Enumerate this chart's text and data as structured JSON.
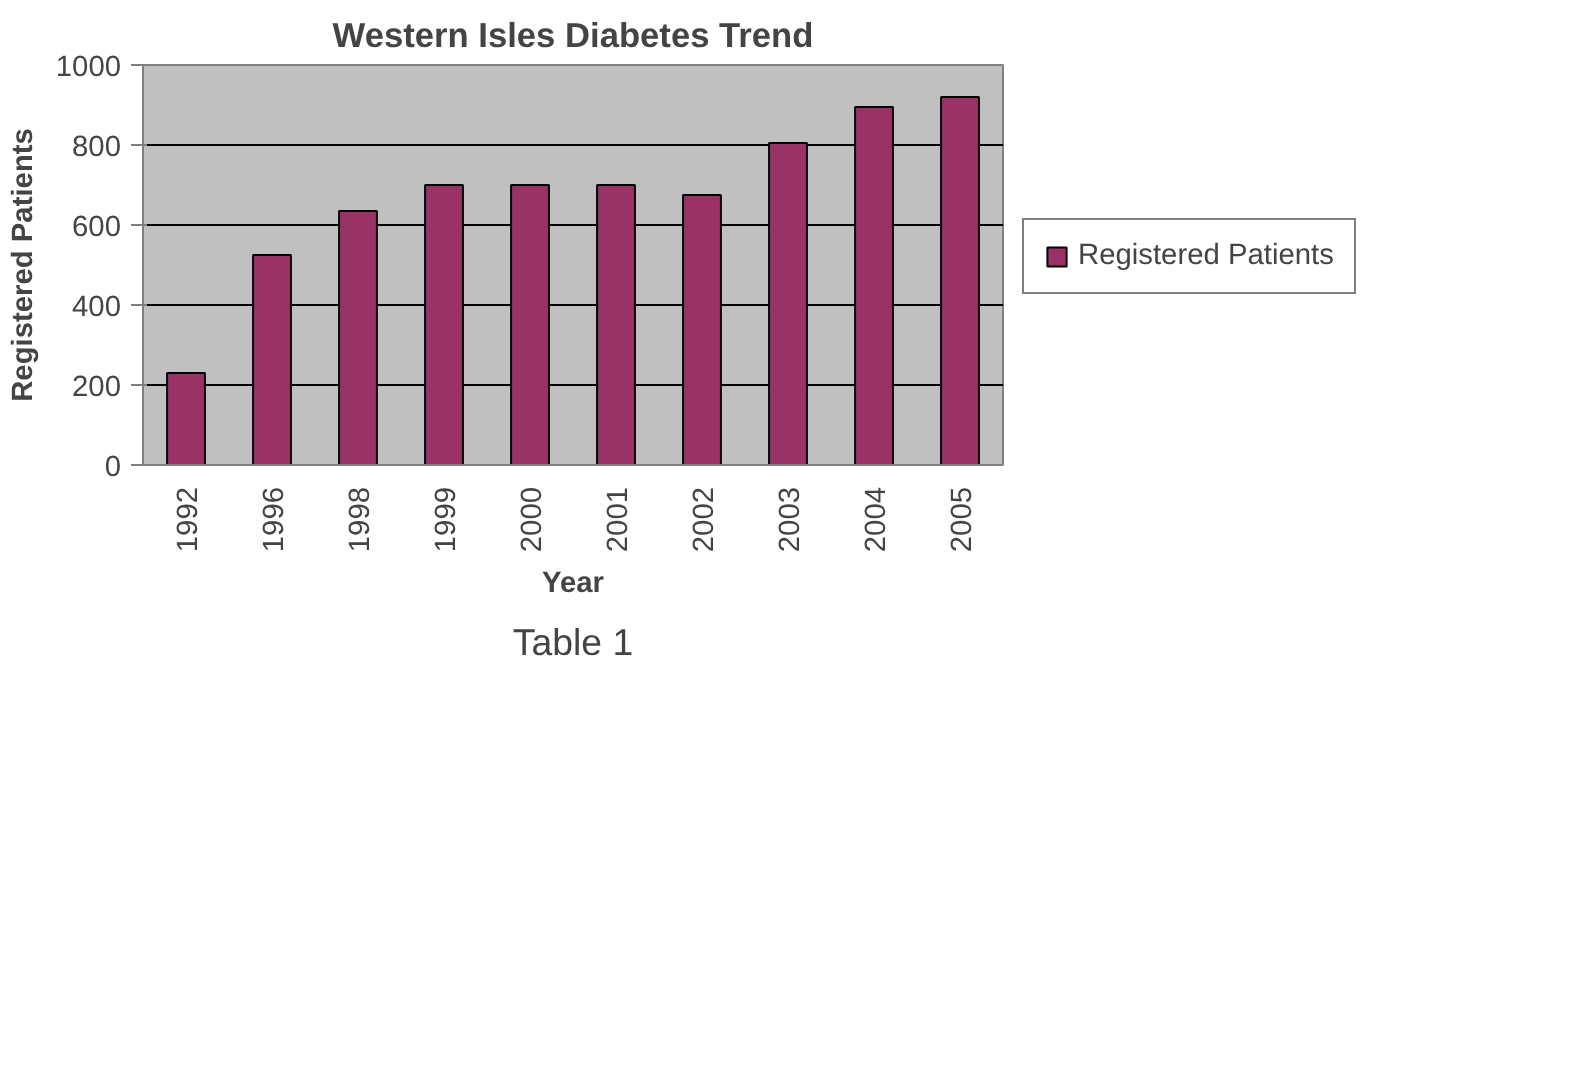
{
  "chart_data": {
    "type": "bar",
    "title": "Western Isles Diabetes Trend",
    "xlabel": "Year",
    "ylabel": "Registered Patients",
    "categories": [
      "1992",
      "1996",
      "1998",
      "1999",
      "2000",
      "2001",
      "2002",
      "2003",
      "2004",
      "2005"
    ],
    "series": [
      {
        "name": "Registered Patients",
        "color": "#993366",
        "values": [
          230,
          525,
          635,
          700,
          700,
          700,
          675,
          805,
          895,
          920
        ]
      }
    ],
    "ylim": [
      0,
      1000
    ],
    "yticks": [
      0,
      200,
      400,
      600,
      800,
      1000
    ],
    "grid": "y",
    "legend": "right",
    "annotations": [
      "Table 1"
    ]
  }
}
